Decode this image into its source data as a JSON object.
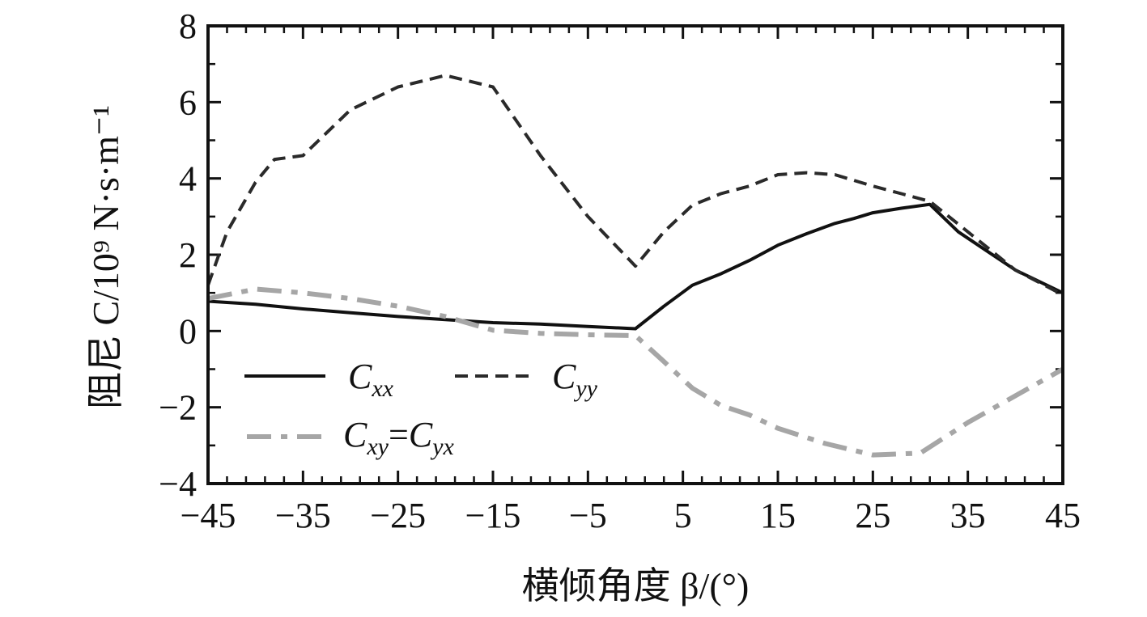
{
  "chart_data": {
    "type": "line",
    "xlabel": "横倾角度 β/(°)",
    "ylabel": "阻尼 C/10⁹ N·s·m⁻¹",
    "xlim": [
      -45,
      45
    ],
    "ylim": [
      -4,
      8
    ],
    "xticks": [
      -45,
      -35,
      -25,
      -15,
      -5,
      5,
      15,
      25,
      35,
      45
    ],
    "xtick_labels": [
      "−45",
      "−35",
      "−25",
      "−15",
      "−5",
      "5",
      "15",
      "25",
      "35",
      "45"
    ],
    "yticks": [
      -4,
      -2,
      0,
      2,
      4,
      6,
      8
    ],
    "ytick_labels": [
      "−4",
      "−2",
      "0",
      "2",
      "4",
      "6",
      "8"
    ],
    "grid": false,
    "legend": "lower-left",
    "series": [
      {
        "name": "Cxx",
        "main": "C",
        "sub": "xx",
        "style": "solid",
        "color": "#111111",
        "x": [
          -45,
          -40,
          -35,
          -30,
          -25,
          -20,
          -15,
          -10,
          -5,
          0,
          3,
          6,
          9,
          12,
          15,
          18,
          21,
          23,
          25,
          28,
          31,
          34,
          37,
          40,
          45
        ],
        "y": [
          0.78,
          0.7,
          0.58,
          0.48,
          0.38,
          0.3,
          0.22,
          0.18,
          0.12,
          0.06,
          0.65,
          1.2,
          1.5,
          1.85,
          2.25,
          2.55,
          2.82,
          2.95,
          3.1,
          3.22,
          3.32,
          2.6,
          2.1,
          1.6,
          1.0
        ]
      },
      {
        "name": "Cyy",
        "main": "C",
        "sub": "yy",
        "style": "dashed",
        "color": "#2a2a2a",
        "x": [
          -45,
          -43,
          -40,
          -38,
          -35,
          -30,
          -25,
          -20,
          -15,
          -10,
          -5,
          0,
          3,
          6,
          9,
          12,
          15,
          18,
          21,
          25,
          28,
          31,
          35,
          40,
          45
        ],
        "y": [
          1.2,
          2.6,
          3.9,
          4.5,
          4.6,
          5.8,
          6.4,
          6.7,
          6.4,
          4.6,
          3.0,
          1.7,
          2.6,
          3.3,
          3.6,
          3.8,
          4.1,
          4.15,
          4.1,
          3.8,
          3.6,
          3.4,
          2.6,
          1.6,
          0.95
        ]
      },
      {
        "name": "Cxy=Cyx",
        "main": "C",
        "sub": "xy",
        "main2": "C",
        "sub2": "yx",
        "style": "dashdot",
        "color": "#a6a6a6",
        "x": [
          -45,
          -40,
          -35,
          -30,
          -25,
          -20,
          -15,
          -10,
          -5,
          0,
          3,
          6,
          9,
          12,
          15,
          20,
          25,
          30,
          35,
          40,
          45
        ],
        "y": [
          0.85,
          1.1,
          1.0,
          0.85,
          0.65,
          0.38,
          0.02,
          -0.06,
          -0.1,
          -0.12,
          -0.8,
          -1.5,
          -1.95,
          -2.2,
          -2.55,
          -2.95,
          -3.25,
          -3.2,
          -2.4,
          -1.7,
          -1.0
        ]
      }
    ]
  }
}
